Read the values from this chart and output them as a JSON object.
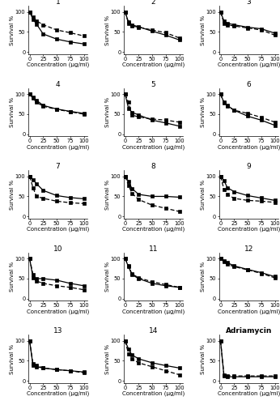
{
  "x": [
    0,
    6.25,
    12.5,
    25,
    50,
    75,
    100
  ],
  "plots": [
    {
      "num": "1",
      "hepg2": [
        100,
        82,
        70,
        45,
        32,
        25,
        20
      ],
      "mcf7": [
        100,
        88,
        78,
        68,
        55,
        48,
        40
      ]
    },
    {
      "num": "2",
      "hepg2": [
        100,
        75,
        68,
        63,
        52,
        42,
        30
      ],
      "mcf7": [
        100,
        72,
        65,
        62,
        55,
        48,
        35
      ]
    },
    {
      "num": "3",
      "hepg2": [
        100,
        78,
        72,
        68,
        62,
        58,
        47
      ],
      "mcf7": [
        100,
        72,
        68,
        65,
        60,
        55,
        42
      ]
    },
    {
      "num": "4",
      "hepg2": [
        100,
        92,
        85,
        72,
        63,
        57,
        52
      ],
      "mcf7": [
        100,
        90,
        80,
        70,
        62,
        56,
        50
      ]
    },
    {
      "num": "5",
      "hepg2": [
        100,
        65,
        55,
        48,
        35,
        28,
        20
      ],
      "mcf7": [
        100,
        80,
        48,
        43,
        38,
        35,
        30
      ]
    },
    {
      "num": "6",
      "hepg2": [
        100,
        80,
        72,
        60,
        45,
        35,
        22
      ],
      "mcf7": [
        100,
        78,
        70,
        60,
        52,
        42,
        30
      ]
    },
    {
      "num": "7",
      "hepg2": [
        100,
        92,
        82,
        65,
        52,
        47,
        44
      ],
      "mcf7": [
        100,
        72,
        50,
        45,
        38,
        34,
        32
      ]
    },
    {
      "num": "8",
      "hepg2": [
        100,
        88,
        70,
        55,
        50,
        50,
        48
      ],
      "mcf7": [
        100,
        78,
        58,
        42,
        28,
        20,
        12
      ]
    },
    {
      "num": "9",
      "hepg2": [
        100,
        90,
        72,
        62,
        52,
        46,
        40
      ],
      "mcf7": [
        100,
        68,
        55,
        45,
        40,
        38,
        35
      ]
    },
    {
      "num": "10",
      "hepg2": [
        100,
        52,
        50,
        50,
        46,
        38,
        32
      ],
      "mcf7": [
        100,
        60,
        44,
        38,
        32,
        28,
        22
      ]
    },
    {
      "num": "11",
      "hepg2": [
        100,
        80,
        60,
        50,
        38,
        32,
        28
      ],
      "mcf7": [
        100,
        82,
        62,
        52,
        42,
        35,
        28
      ]
    },
    {
      "num": "12",
      "hepg2": [
        100,
        95,
        90,
        82,
        73,
        65,
        55
      ],
      "mcf7": [
        100,
        92,
        86,
        80,
        72,
        63,
        52
      ]
    },
    {
      "num": "13",
      "hepg2": [
        100,
        38,
        35,
        32,
        28,
        25,
        22
      ],
      "mcf7": [
        100,
        42,
        38,
        32,
        28,
        25,
        20
      ]
    },
    {
      "num": "14",
      "hepg2": [
        100,
        80,
        65,
        55,
        45,
        38,
        32
      ],
      "mcf7": [
        100,
        68,
        55,
        45,
        35,
        25,
        15
      ]
    },
    {
      "num": "Adriamycin",
      "hepg2": [
        100,
        12,
        10,
        10,
        10,
        10,
        10
      ],
      "mcf7": [
        100,
        15,
        13,
        12,
        12,
        12,
        12
      ]
    }
  ],
  "xticks": [
    0,
    25,
    50,
    75,
    100
  ],
  "yticks": [
    0,
    50,
    100
  ],
  "xlabel": "Concentration (µg/ml)",
  "ylabel": "Survival %",
  "ylim": [
    -5,
    115
  ],
  "xlim": [
    -3,
    107
  ],
  "solid_color": "#000000",
  "dashed_color": "#000000",
  "marker": "s",
  "markersize": 2.2,
  "linewidth": 0.9,
  "title_fontsize": 6.5,
  "label_fontsize": 5.0,
  "tick_fontsize": 4.8,
  "background": "#f0f0f0"
}
